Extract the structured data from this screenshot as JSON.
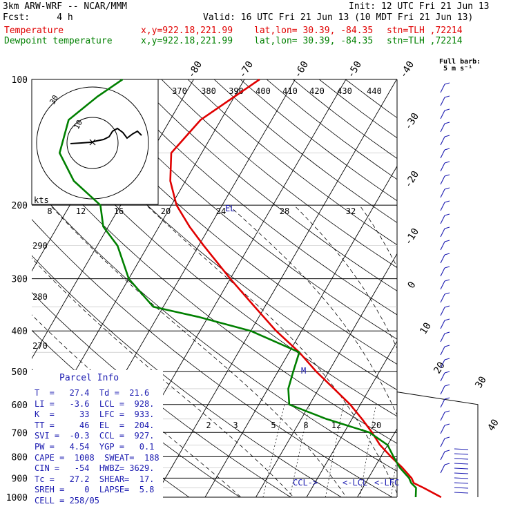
{
  "header": {
    "model": "3km ARW-WRF -- NCAR/MMM",
    "init": "Init: 12 UTC Fri 21 Jun 13",
    "fcst": "Fcst:     4 h",
    "valid": "Valid: 16 UTC Fri 21 Jun 13 (10 MDT Fri 21 Jun 13)",
    "temp_line": {
      "name": "Temperature",
      "xy": "x,y=922.18,221.99",
      "latlon": "lat,lon= 30.39, -84.35",
      "stn": "stn=TLH ,72214"
    },
    "dew_line": {
      "name": "Dewpoint temperature",
      "xy": "x,y=922.18,221.99",
      "latlon": "lat,lon= 30.39, -84.35",
      "stn": "stn=TLH ,72214"
    },
    "barb_label1": "Full barb:",
    "barb_label2": "5 m s⁻¹"
  },
  "colors": {
    "temperature": "#e00000",
    "dewpoint": "#008000",
    "annotation": "#1a1ab0"
  },
  "chart_data": {
    "type": "line",
    "title": "",
    "x_label": "",
    "y_label": "",
    "y_scale": "log",
    "pressure_ticks": [
      "100",
      "200",
      "300",
      "400",
      "500",
      "600",
      "700",
      "800",
      "900",
      "1000"
    ],
    "temperature_ticks": [
      "-80",
      "-70",
      "-60",
      "-50",
      "-40",
      "-30",
      "-20",
      "-10",
      "0",
      "10",
      "20",
      "30",
      "40"
    ],
    "theta_labels": [
      "370",
      "380",
      "390",
      "400",
      "410",
      "420",
      "430",
      "440"
    ],
    "hodo_speed_labels": [
      "8",
      "12",
      "16",
      "20",
      "24",
      "28",
      "32"
    ],
    "hodo_ring_labels": [
      "30",
      "10"
    ],
    "hodo_unit": "kts",
    "mixing_ratio_labels": [
      "2",
      "3",
      "5",
      "8",
      "12",
      "20"
    ],
    "side_theta_labels": [
      "290",
      "280",
      "270"
    ],
    "series": [
      {
        "name": "Temperature",
        "p": [
          1000,
          950,
          925,
          900,
          850,
          800,
          750,
          700,
          650,
          600,
          550,
          500,
          450,
          400,
          350,
          300,
          250,
          225,
          200,
          175,
          150,
          125,
          110,
          100
        ],
        "t": [
          26.5,
          22,
          19.5,
          18.5,
          15.5,
          12,
          8.5,
          5.5,
          2,
          -2,
          -7,
          -12.5,
          -18,
          -25,
          -32,
          -40,
          -49,
          -54,
          -59,
          -63,
          -66,
          -64,
          -60,
          -57
        ]
      },
      {
        "name": "Dewpoint temperature",
        "p": [
          1000,
          950,
          925,
          900,
          850,
          800,
          750,
          700,
          650,
          600,
          550,
          500,
          450,
          400,
          370,
          350,
          300,
          250,
          225,
          200,
          175,
          150,
          125,
          110,
          100
        ],
        "t": [
          21.5,
          20.5,
          19,
          18,
          15,
          12.5,
          10,
          5,
          -5,
          -14,
          -16,
          -17,
          -18,
          -30,
          -42,
          -52,
          -60,
          -66,
          -71,
          -74,
          -82,
          -88,
          -90,
          -87,
          -84
        ]
      }
    ],
    "annotations": {
      "el": "EL",
      "ccl": "CCL",
      "lcl": "LCL",
      "lfc": "LFC"
    }
  },
  "parcel": {
    "title": "Parcel Info",
    "rows": [
      "T  =   27.4  Td =  21.6",
      "LI =   -3.6  LCL =  928.",
      "K  =     33  LFC =  933.",
      "TT =     46  EL  =  204.",
      "SVI =  -0.3  CCL =  927.",
      "PW =   4.54  YGP =   0.1",
      "CAPE =  1008  SWEAT=  188",
      "CIN =   -54  HWBZ= 3629.",
      "Tc =   27.2  SHEAR=  17.",
      "SREH =    0  LAPSE=  5.8",
      "CELL = 258/05"
    ]
  }
}
